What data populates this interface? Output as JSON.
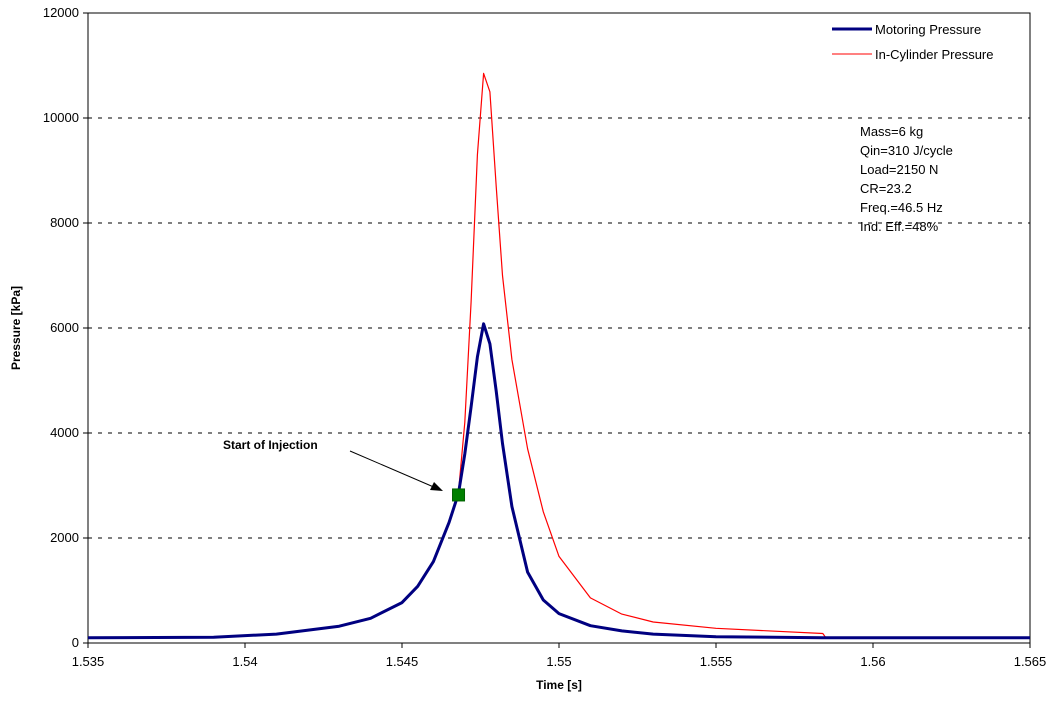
{
  "chart_data": {
    "type": "line",
    "xlabel": "Time [s]",
    "ylabel": "Pressure [kPa]",
    "xlim": [
      1.535,
      1.565
    ],
    "ylim": [
      0,
      12000
    ],
    "xticks": [
      1.535,
      1.54,
      1.545,
      1.55,
      1.555,
      1.56,
      1.565
    ],
    "xtick_labels": [
      "1.535",
      "1.54",
      "1.545",
      "1.55",
      "1.555",
      "1.56",
      "1.565"
    ],
    "yticks": [
      0,
      2000,
      4000,
      6000,
      8000,
      10000,
      12000
    ],
    "ytick_labels": [
      "0",
      "2000",
      "4000",
      "6000",
      "8000",
      "10000",
      "12000"
    ],
    "grid": "horizontal dashed",
    "legend_position": "top-right",
    "series": [
      {
        "name": "Motoring Pressure",
        "color": "#000080",
        "x": [
          1.535,
          1.539,
          1.541,
          1.543,
          1.544,
          1.545,
          1.5455,
          1.546,
          1.5465,
          1.5468,
          1.547,
          1.5472,
          1.5474,
          1.5476,
          1.5478,
          1.548,
          1.5482,
          1.5485,
          1.549,
          1.5495,
          1.55,
          1.551,
          1.552,
          1.553,
          1.555,
          1.5584,
          1.56,
          1.565
        ],
        "y": [
          100,
          110,
          170,
          320,
          470,
          770,
          1080,
          1550,
          2300,
          2850,
          3600,
          4500,
          5450,
          6080,
          5700,
          4800,
          3800,
          2600,
          1350,
          820,
          560,
          330,
          230,
          170,
          120,
          100,
          100,
          100
        ]
      },
      {
        "name": "In-Cylinder Pressure",
        "color": "#ff0000",
        "x": [
          1.535,
          1.539,
          1.541,
          1.543,
          1.544,
          1.545,
          1.5455,
          1.546,
          1.5465,
          1.5468,
          1.547,
          1.5472,
          1.5474,
          1.5476,
          1.5478,
          1.548,
          1.5482,
          1.5485,
          1.549,
          1.5495,
          1.55,
          1.551,
          1.552,
          1.553,
          1.555,
          1.5584,
          1.5585,
          1.56,
          1.565
        ],
        "y": [
          100,
          110,
          170,
          320,
          470,
          770,
          1090,
          1560,
          2320,
          2880,
          4200,
          6500,
          9300,
          10850,
          10500,
          8700,
          7000,
          5400,
          3700,
          2500,
          1650,
          860,
          550,
          400,
          280,
          180,
          100,
          100,
          100
        ]
      }
    ],
    "marker": {
      "label": "Start of Injection",
      "x": 1.5468,
      "y": 2820,
      "color": "#008000"
    },
    "annotations": [
      "Mass=6 kg",
      "Qin=310 J/cycle",
      "Load=2150 N",
      "CR=23.2",
      "Freq.=46.5 Hz",
      "Ind. Eff.=48%"
    ]
  }
}
